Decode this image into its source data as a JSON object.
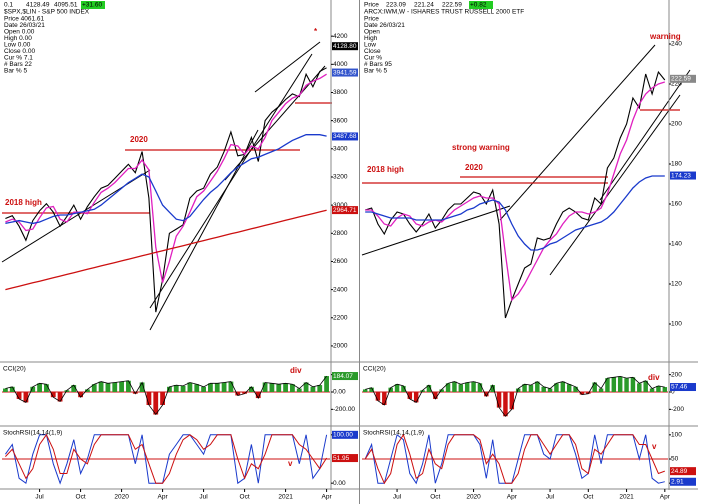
{
  "chart_data": [
    {
      "type": "line",
      "title": "$SPX,$LIN - S&P 500 INDEX",
      "header_values": [
        "0.1",
        "4128.49",
        "4095.51",
        "+31.60"
      ],
      "info": [
        "Price 4061.61",
        "Date 26/03/21",
        "Open 0.00",
        "High 0.00",
        "Low 0.00",
        "Close 0.00",
        "Cur % 7.1",
        "# Bars 22",
        "Bar % 5"
      ],
      "categories": [
        null,
        null,
        null,
        null,
        null,
        "Jul",
        null,
        null,
        null,
        null,
        null,
        "Oct",
        null,
        null,
        null,
        null,
        null,
        "2020",
        null,
        null,
        null,
        null,
        null,
        "Apr",
        null,
        null,
        null,
        null,
        null,
        "Jul",
        null,
        null,
        null,
        null,
        null,
        "Oct",
        null,
        null,
        null,
        null,
        null,
        "2021",
        null,
        null,
        null,
        null,
        null,
        "Apr"
      ],
      "series": [
        {
          "color": "#000000",
          "values": [
            2905,
            2925,
            2850,
            2750,
            2890,
            2960,
            3010,
            2950,
            2850,
            2920,
            3000,
            2900,
            2990,
            3060,
            3120,
            3140,
            3190,
            3240,
            3290,
            3230,
            3380,
            3050,
            2240,
            2470,
            2800,
            2830,
            2860,
            3050,
            3100,
            3120,
            3220,
            3270,
            3380,
            3520,
            3350,
            3360,
            3480,
            3310,
            3600,
            3660,
            3700,
            3750,
            3790,
            3770,
            3930,
            3840,
            3950,
            3975
          ]
        },
        {
          "color": "#e020c0",
          "values": [
            2880,
            2900,
            2880,
            2820,
            2830,
            2910,
            2980,
            2990,
            2900,
            2880,
            2950,
            2950,
            2940,
            3020,
            3090,
            3120,
            3160,
            3210,
            3260,
            3260,
            3320,
            3250,
            2700,
            2450,
            2600,
            2780,
            2850,
            2950,
            3060,
            3100,
            3170,
            3240,
            3330,
            3430,
            3420,
            3360,
            3420,
            3400,
            3480,
            3600,
            3660,
            3720,
            3760,
            3780,
            3850,
            3880,
            3900,
            3930
          ]
        },
        {
          "color": "#1a3acc",
          "values": [
            2870,
            2880,
            2890,
            2880,
            2870,
            2880,
            2900,
            2920,
            2930,
            2930,
            2940,
            2950,
            2960,
            2970,
            3000,
            3040,
            3080,
            3120,
            3160,
            3190,
            3220,
            3200,
            3100,
            3000,
            2950,
            2900,
            2890,
            2920,
            2980,
            3040,
            3090,
            3130,
            3180,
            3230,
            3270,
            3300,
            3330,
            3340,
            3360,
            3380,
            3400,
            3430,
            3460,
            3480,
            3500,
            3500,
            3500,
            3490
          ]
        },
        {
          "color": "#cc1010",
          "values": [
            2400,
            2412,
            2424,
            2436,
            2448,
            2460,
            2472,
            2484,
            2496,
            2508,
            2520,
            2532,
            2544,
            2556,
            2568,
            2580,
            2592,
            2604,
            2616,
            2628,
            2640,
            2652,
            2664,
            2676,
            2688,
            2700,
            2712,
            2724,
            2736,
            2748,
            2760,
            2772,
            2784,
            2796,
            2808,
            2820,
            2832,
            2844,
            2856,
            2868,
            2880,
            2892,
            2904,
            2916,
            2928,
            2940,
            2952,
            2964
          ]
        }
      ],
      "ylim": [
        1900,
        4400
      ],
      "yticks": [
        4200,
        4000,
        3800,
        3600,
        3400,
        3200,
        3000,
        2800,
        2600,
        2400,
        2200,
        2000
      ],
      "price_labels": [
        {
          "value": 4128.8,
          "label": "4128.80",
          "color": "#000000"
        },
        {
          "value": 3941.59,
          "label": "3941.59",
          "color": "#3355cc"
        },
        {
          "value": 3487.68,
          "label": "3487.68",
          "color": "#1a3acc"
        },
        {
          "value": 2964.71,
          "label": "2964.71",
          "color": "#cc1010"
        }
      ],
      "annotations": [
        "2020",
        "2018 high",
        "*",
        "div",
        "v"
      ],
      "cci": {
        "title": "CCI(20)",
        "positive_color": "#2a9a2a",
        "negative_color": "#cc1010",
        "level": 0,
        "values": [
          40,
          60,
          -80,
          -120,
          60,
          100,
          90,
          -60,
          -110,
          20,
          80,
          -60,
          30,
          90,
          120,
          100,
          110,
          120,
          130,
          -20,
          110,
          -150,
          -260,
          -150,
          60,
          80,
          70,
          110,
          90,
          60,
          100,
          100,
          110,
          120,
          -40,
          -20,
          60,
          -70,
          110,
          100,
          90,
          100,
          90,
          40,
          110,
          60,
          80,
          184
        ],
        "ylim": [
          -300,
          300
        ],
        "yticks": [
          {
            "value": 200,
            "label": "200.00"
          },
          {
            "value": 0,
            "label": "0.00"
          },
          {
            "value": -200,
            "label": "-200.00"
          }
        ],
        "last_labels": [
          {
            "value": 184.07,
            "label": "184.07",
            "color": "#2a9a2a"
          }
        ]
      },
      "stochrsi": {
        "title": "StochRSI(14,14(1,9)",
        "level": 50,
        "series": [
          {
            "color": "#1a3acc",
            "values": [
              60,
              80,
              10,
              0,
              60,
              100,
              100,
              40,
              0,
              40,
              90,
              20,
              50,
              100,
              100,
              100,
              100,
              100,
              100,
              40,
              100,
              0,
              0,
              0,
              60,
              80,
              100,
              100,
              80,
              60,
              100,
              100,
              100,
              100,
              0,
              10,
              80,
              0,
              100,
              100,
              100,
              100,
              100,
              40,
              100,
              10,
              30,
              100
            ]
          },
          {
            "color": "#cc1010",
            "values": [
              55,
              70,
              40,
              10,
              30,
              80,
              100,
              70,
              20,
              20,
              70,
              50,
              40,
              80,
              100,
              100,
              100,
              100,
              100,
              70,
              80,
              40,
              0,
              0,
              20,
              60,
              90,
              100,
              90,
              70,
              80,
              100,
              100,
              100,
              50,
              10,
              40,
              30,
              60,
              100,
              100,
              100,
              100,
              80,
              70,
              50,
              30,
              52
            ]
          }
        ],
        "ylim": [
          -10,
          110
        ],
        "yticks": [
          {
            "value": 100,
            "label": "100.00"
          },
          {
            "value": 0,
            "label": "0.00"
          }
        ],
        "last_labels": [
          {
            "value": 100,
            "label": "100.00",
            "color": "#1a3acc"
          },
          {
            "value": 51.95,
            "label": "51.95",
            "color": "#cc1010"
          }
        ]
      }
    },
    {
      "type": "line",
      "title": "ARCX:IWM,W - ISHARES TRUST RUSSELL 2000 ETF",
      "header_values": [
        "Price",
        "223.09",
        "221.24",
        "222.59",
        "+0.82"
      ],
      "info": [
        "Price",
        "Date 26/03/21",
        "Open",
        "High",
        "Low",
        "Close",
        "Cur %",
        "# Bars 95",
        "Bar % 5"
      ],
      "categories": [
        null,
        null,
        null,
        null,
        null,
        "Jul",
        null,
        null,
        null,
        null,
        null,
        "Oct",
        null,
        null,
        null,
        null,
        null,
        "2020",
        null,
        null,
        null,
        null,
        null,
        "Apr",
        null,
        null,
        null,
        null,
        null,
        "Jul",
        null,
        null,
        null,
        null,
        null,
        "Oct",
        null,
        null,
        null,
        null,
        null,
        "2021",
        null,
        null,
        null,
        null,
        null,
        "Apr"
      ],
      "series": [
        {
          "color": "#000000",
          "values": [
            157,
            158,
            150,
            145,
            152,
            156,
            155,
            150,
            146,
            150,
            155,
            148,
            152,
            157,
            160,
            160,
            163,
            166,
            165,
            160,
            167,
            150,
            103,
            112,
            120,
            128,
            130,
            143,
            142,
            143,
            150,
            156,
            158,
            156,
            153,
            152,
            163,
            160,
            178,
            183,
            193,
            200,
            213,
            208,
            225,
            215,
            226,
            222
          ]
        },
        {
          "color": "#e020c0",
          "values": [
            157,
            157,
            154,
            150,
            149,
            153,
            155,
            154,
            150,
            149,
            151,
            152,
            151,
            154,
            157,
            159,
            161,
            163,
            164,
            163,
            163,
            160,
            135,
            112,
            115,
            120,
            126,
            132,
            138,
            142,
            145,
            150,
            154,
            156,
            156,
            155,
            156,
            158,
            165,
            175,
            185,
            192,
            202,
            210,
            215,
            218,
            220,
            221
          ]
        },
        {
          "color": "#1a3acc",
          "values": [
            156,
            156,
            155,
            154,
            153,
            153,
            153,
            153,
            152,
            152,
            152,
            152,
            152,
            153,
            154,
            155,
            157,
            158,
            160,
            161,
            162,
            161,
            157,
            150,
            144,
            140,
            137,
            137,
            138,
            140,
            141,
            143,
            145,
            147,
            148,
            149,
            150,
            151,
            153,
            156,
            160,
            164,
            168,
            171,
            173,
            174,
            174,
            174
          ]
        }
      ],
      "ylim": [
        82,
        258
      ],
      "yticks": [
        240,
        220,
        200,
        180,
        160,
        140,
        120,
        100
      ],
      "price_labels": [
        {
          "value": 222.59,
          "label": "222.59",
          "color": "#888888"
        },
        {
          "value": 174.23,
          "label": "174.23",
          "color": "#1a3acc"
        }
      ],
      "annotations": [
        "warning",
        "2018 high",
        "2020",
        "strong warning",
        "div",
        "v"
      ],
      "cci": {
        "title": "CCI(20)",
        "positive_color": "#2a9a2a",
        "negative_color": "#cc1010",
        "level": 0,
        "values": [
          30,
          50,
          -100,
          -150,
          50,
          90,
          70,
          -80,
          -120,
          20,
          80,
          -80,
          30,
          100,
          120,
          90,
          110,
          120,
          100,
          -50,
          80,
          -180,
          -280,
          -200,
          40,
          90,
          80,
          120,
          60,
          40,
          100,
          120,
          90,
          60,
          -30,
          -20,
          110,
          40,
          160,
          170,
          180,
          160,
          170,
          100,
          130,
          40,
          70,
          57
        ],
        "ylim": [
          -300,
          300
        ],
        "yticks": [
          {
            "value": 200,
            "label": "200"
          },
          {
            "value": 0,
            "label": "0"
          },
          {
            "value": -200,
            "label": "-200"
          }
        ],
        "last_labels": [
          {
            "value": 57.46,
            "label": "57.46",
            "color": "#1a3acc"
          }
        ]
      },
      "stochrsi": {
        "title": "StochRSI(14,14,(1,9)",
        "level": 50,
        "series": [
          {
            "color": "#1a3acc",
            "values": [
              50,
              80,
              0,
              0,
              50,
              100,
              90,
              20,
              0,
              40,
              100,
              0,
              40,
              100,
              100,
              100,
              100,
              100,
              80,
              10,
              90,
              0,
              0,
              0,
              50,
              100,
              100,
              100,
              60,
              50,
              100,
              100,
              100,
              60,
              10,
              20,
              100,
              40,
              100,
              100,
              100,
              100,
              100,
              50,
              100,
              10,
              0,
              3
            ]
          },
          {
            "color": "#cc1010",
            "values": [
              50,
              70,
              30,
              0,
              20,
              80,
              100,
              60,
              10,
              20,
              70,
              40,
              30,
              80,
              100,
              100,
              100,
              100,
              90,
              40,
              60,
              40,
              0,
              0,
              20,
              70,
              100,
              100,
              80,
              60,
              80,
              100,
              100,
              80,
              30,
              20,
              70,
              60,
              80,
              100,
              100,
              100,
              100,
              80,
              80,
              50,
              20,
              25
            ]
          }
        ],
        "ylim": [
          -10,
          110
        ],
        "yticks": [
          100,
          50,
          0
        ],
        "last_labels": [
          {
            "value": 24.89,
            "label": "24.89",
            "color": "#cc1010"
          },
          {
            "value": 2.91,
            "label": "2.91",
            "color": "#1a3acc"
          }
        ]
      }
    }
  ]
}
